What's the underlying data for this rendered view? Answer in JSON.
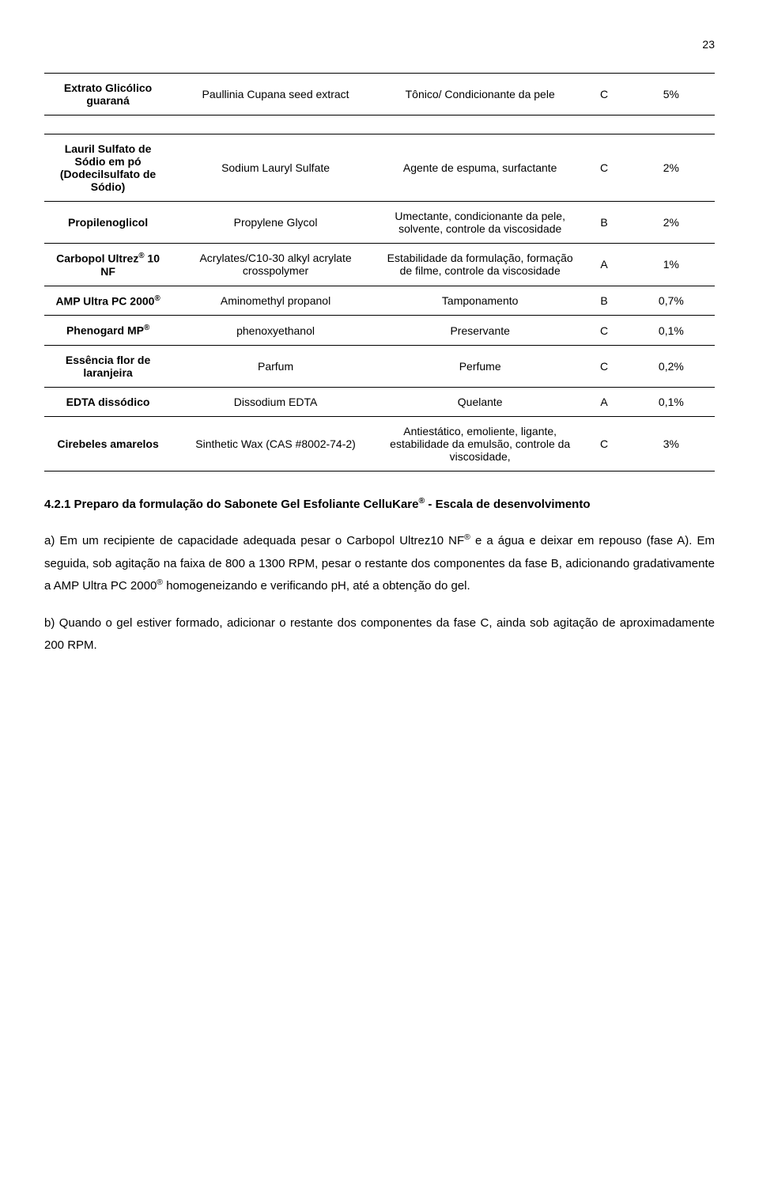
{
  "page_number": "23",
  "table": {
    "rows": [
      {
        "name_html": "Extrato Glicólico guaraná",
        "inci": "Paullinia Cupana seed extract",
        "func": "Tônico/ Condicionante da pele",
        "phase": "C",
        "pct": "5%"
      },
      {
        "spacer": true
      },
      {
        "name_html": "Lauril Sulfato de Sódio em pó (Dodecilsulfato de Sódio)",
        "inci": "Sodium Lauryl Sulfate",
        "func": "Agente de espuma, surfactante",
        "phase": "C",
        "pct": "2%"
      },
      {
        "name_html": "Propilenoglicol",
        "inci": "Propylene Glycol",
        "func": "Umectante, condicionante da pele, solvente, controle da viscosidade",
        "phase": "B",
        "pct": "2%"
      },
      {
        "name_html": "Carbopol Ultrez<sup>®</sup> 10 NF",
        "inci": "Acrylates/C10-30 alkyl acrylate crosspolymer",
        "func": "Estabilidade da formulação, formação de filme, controle da viscosidade",
        "phase": "A",
        "pct": "1%"
      },
      {
        "name_html": "AMP Ultra PC 2000<sup>®</sup>",
        "inci": "Aminomethyl propanol",
        "func": "Tamponamento",
        "phase": "B",
        "pct": "0,7%"
      },
      {
        "name_html": "Phenogard MP<sup>®</sup>",
        "inci": "phenoxyethanol",
        "func": "Preservante",
        "phase": "C",
        "pct": "0,1%"
      },
      {
        "name_html": "Essência flor de laranjeira",
        "inci": "Parfum",
        "func": "Perfume",
        "phase": "C",
        "pct": "0,2%"
      },
      {
        "name_html": "EDTA dissódico",
        "inci": "Dissodium EDTA",
        "func": "Quelante",
        "phase": "A",
        "pct": "0,1%"
      },
      {
        "name_html": "Cirebeles amarelos",
        "inci": "Sinthetic Wax (CAS #8002-74-2)",
        "func": "Antiestático, emoliente, ligante, estabilidade da emulsão, controle da viscosidade,",
        "phase": "C",
        "pct": "3%"
      }
    ]
  },
  "heading_html": "4.2.1 Preparo da formulação do Sabonete Gel Esfoliante CelluKare<sup>®</sup> - Escala de desenvolvimento",
  "para_a_html": "a) Em um recipiente de capacidade adequada pesar o Carbopol Ultrez10 NF<sup>®</sup> e a água e deixar em repouso (fase A). Em seguida, sob agitação na faixa de 800 a 1300 RPM, pesar o restante dos componentes da fase B, adicionando gradativamente a AMP Ultra PC 2000<sup>®</sup> homogeneizando e verificando pH, até a obtenção do gel.",
  "para_b": "b) Quando o gel estiver formado, adicionar o restante dos componentes da fase C, ainda sob agitação de aproximadamente 200 RPM."
}
